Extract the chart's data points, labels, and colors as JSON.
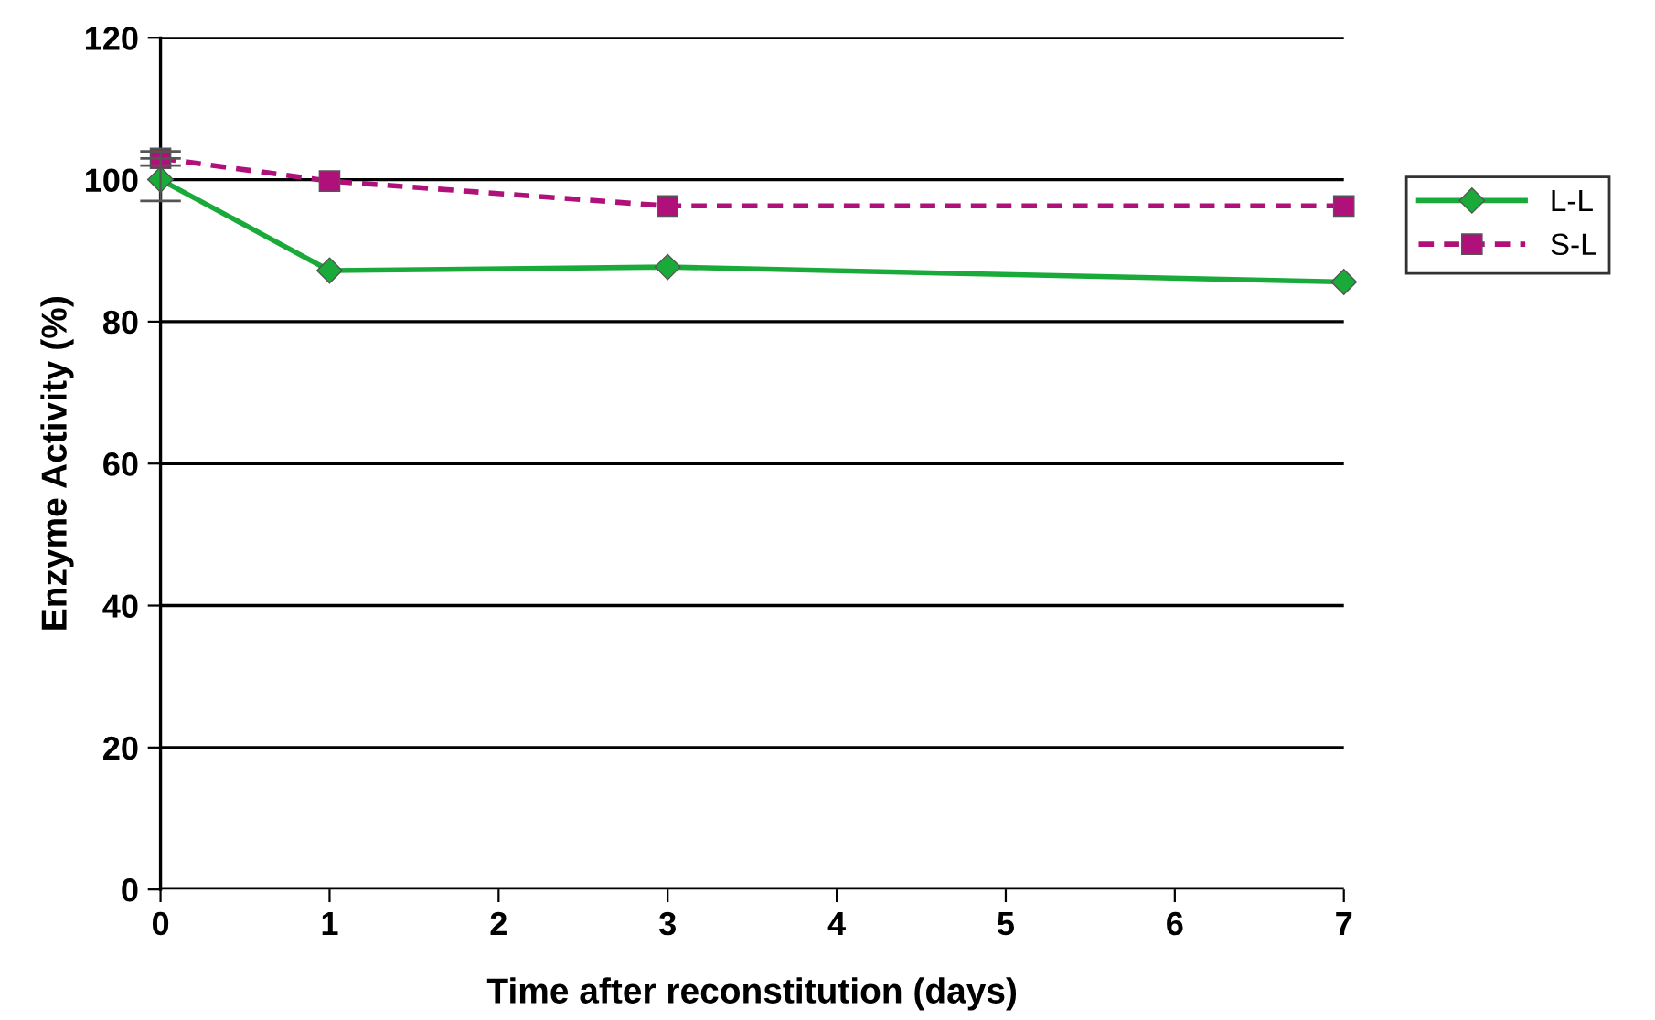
{
  "chart_data": {
    "type": "line",
    "xlabel": "Time after reconstitution (days)",
    "ylabel": "Enzyme Activity (%)",
    "x": [
      0,
      1,
      3,
      7
    ],
    "series": [
      {
        "name": "L-L",
        "color": "#1aaa3a",
        "values": [
          100,
          87.2,
          87.7,
          85.6
        ],
        "errors": [
          3,
          null,
          null,
          null
        ],
        "marker": "diamond",
        "line_style": "solid"
      },
      {
        "name": "S-L",
        "color": "#b0107a",
        "values": [
          103,
          99.8,
          96.3,
          96.3
        ],
        "errors": [
          1,
          null,
          null,
          null
        ],
        "marker": "square",
        "line_style": "dashed"
      }
    ],
    "xlim": [
      0,
      7
    ],
    "xticks": [
      0,
      1,
      2,
      3,
      4,
      5,
      6,
      7
    ],
    "ylim": [
      0,
      120
    ],
    "yticks": [
      0,
      20,
      40,
      60,
      80,
      100,
      120
    ],
    "grid": "y",
    "legend": "right"
  }
}
